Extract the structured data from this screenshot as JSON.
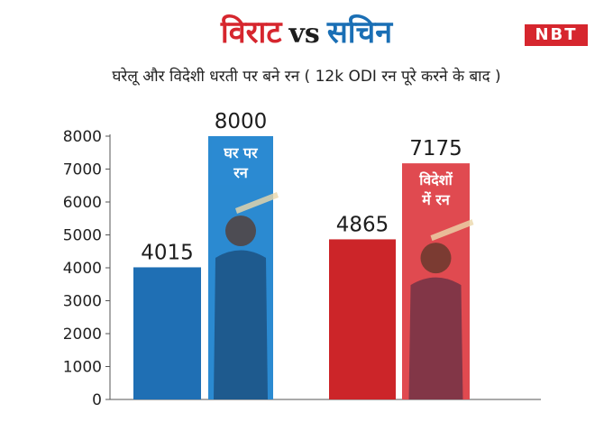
{
  "header": {
    "title_a": "विराट",
    "title_vs": "vs",
    "title_b": "सचिन",
    "subtitle": "घरेलू और विदेशी धरती पर बने रन ( 12k ODI रन पूरे करने के बाद )",
    "logo": "NBT"
  },
  "colors": {
    "virat_red": "#d6262e",
    "sachin_blue": "#1a6fb5",
    "home_bar_dark_blue": "#1f6fb4",
    "away_bar_dark_red": "#cc2529"
  },
  "chart_data": {
    "type": "bar",
    "ylim": [
      0,
      8000
    ],
    "yticks": [
      0,
      1000,
      2000,
      3000,
      4000,
      5000,
      6000,
      7000,
      8000
    ],
    "grid": false,
    "groups": [
      {
        "bars": [
          {
            "value": 4015,
            "label": "4015",
            "color": "#1f6fb4"
          },
          {
            "value": 8000,
            "label": "8000",
            "color": "#2b8ad1",
            "inner_label": [
              "घर पर",
              "रन"
            ],
            "photo": "sachin-tendulkar-photo"
          }
        ]
      },
      {
        "bars": [
          {
            "value": 4865,
            "label": "4865",
            "color": "#cc2529"
          },
          {
            "value": 7175,
            "label": "7175",
            "color": "#e04a50",
            "inner_label": [
              "विदेशों",
              "में रन"
            ],
            "photo": "virat-kohli-photo"
          }
        ]
      }
    ]
  }
}
